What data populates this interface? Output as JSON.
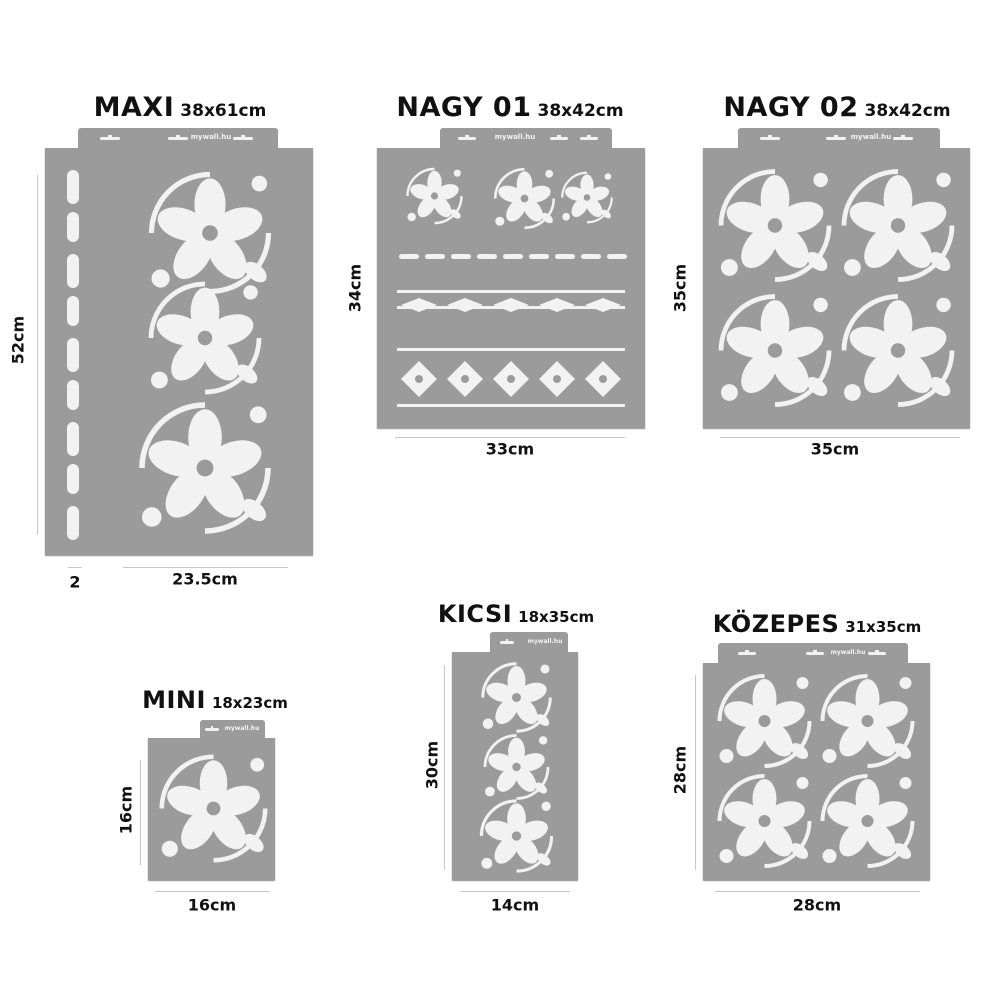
{
  "brand": "mywall.hu",
  "colors": {
    "stencil": "#9b9b9b",
    "cutout": "#f2f2f2",
    "text": "#111111"
  },
  "stencils": [
    {
      "name": "MAXI",
      "size": "38x61cm",
      "height_label": "52cm",
      "width_label": "23.5cm",
      "border_label": "2"
    },
    {
      "name": "NAGY 01",
      "size": "38x42cm",
      "height_label": "34cm",
      "width_label": "33cm"
    },
    {
      "name": "NAGY 02",
      "size": "38x42cm",
      "height_label": "35cm",
      "width_label": "35cm"
    },
    {
      "name": "MINI",
      "size": "18x23cm",
      "height_label": "16cm",
      "width_label": "16cm"
    },
    {
      "name": "KICSI",
      "size": "18x35cm",
      "height_label": "30cm",
      "width_label": "14cm"
    },
    {
      "name": "KÖZEPES",
      "size": "31x35cm",
      "height_label": "28cm",
      "width_label": "28cm"
    }
  ]
}
